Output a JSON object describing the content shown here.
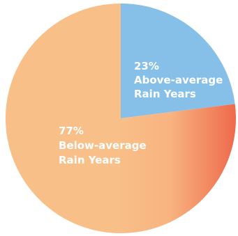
{
  "chart_data": {
    "type": "pie",
    "title": "",
    "start_angle_deg": 0,
    "direction": "clockwise",
    "slices": [
      {
        "value": 23,
        "color": "#86c0e9",
        "label_lines": [
          "23%",
          "Above-average",
          "Rain Years"
        ]
      },
      {
        "value": 77,
        "color": "#f9bf89",
        "gradient_color": "#ee6c4d",
        "label_lines": [
          "77%",
          "Below-average",
          "Rain Years"
        ]
      }
    ]
  }
}
